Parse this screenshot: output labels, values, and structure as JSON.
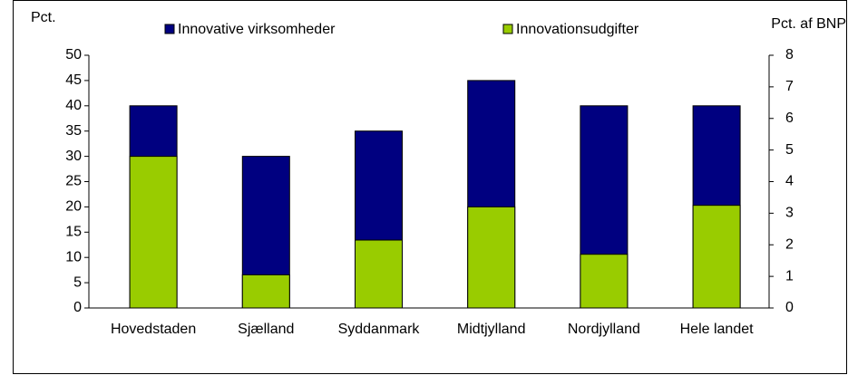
{
  "chart_data": {
    "type": "bar",
    "y_label": "Pct.",
    "y2_label": "Pct. af BNP",
    "categories": [
      "Hovedstaden",
      "Sjælland",
      "Syddanmark",
      "Midtjylland",
      "Nordjylland",
      "Hele landet"
    ],
    "series": [
      {
        "name": "Innovative virksomheder",
        "color": "#000080",
        "axis": "y",
        "values": [
          40,
          30,
          35,
          45,
          40,
          40
        ]
      },
      {
        "name": "Innovationsudgifter",
        "color": "#99cc00",
        "axis": "y2",
        "values": [
          4.8,
          1.05,
          2.15,
          3.2,
          1.7,
          3.25
        ]
      }
    ],
    "ylim": [
      0,
      50
    ],
    "yticks": [
      0,
      5,
      10,
      15,
      20,
      25,
      30,
      35,
      40,
      45,
      50
    ],
    "y2lim": [
      0,
      8
    ],
    "y2ticks": [
      0,
      1,
      2,
      3,
      4,
      5,
      6,
      7,
      8
    ],
    "grid": false
  }
}
